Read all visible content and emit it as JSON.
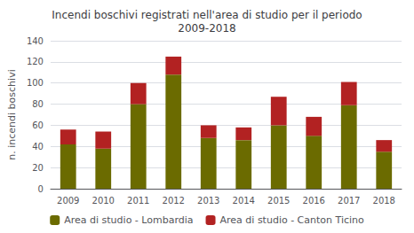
{
  "chart_data": {
    "type": "bar",
    "stacked": true,
    "title": "Incendi boschivi registrati nell'area di studio per il periodo\n2009-2018",
    "ylabel": "n. incendi boschivi",
    "categories": [
      "2009",
      "2010",
      "2011",
      "2012",
      "2013",
      "2014",
      "2015",
      "2016",
      "2017",
      "2018"
    ],
    "series": [
      {
        "name": "Area di studio - Lombardia",
        "color": "#6B6B00",
        "values": [
          42,
          38,
          80,
          108,
          48,
          46,
          60,
          50,
          79,
          35
        ]
      },
      {
        "name": "Area di studio - Canton Ticino",
        "color": "#B22222",
        "values": [
          14,
          16,
          20,
          17,
          12,
          12,
          27,
          18,
          22,
          11
        ]
      }
    ],
    "ylim": [
      0,
      140
    ],
    "yticks": [
      0,
      20,
      40,
      60,
      80,
      100,
      120,
      140
    ],
    "grid": true,
    "legend": "bottom"
  }
}
